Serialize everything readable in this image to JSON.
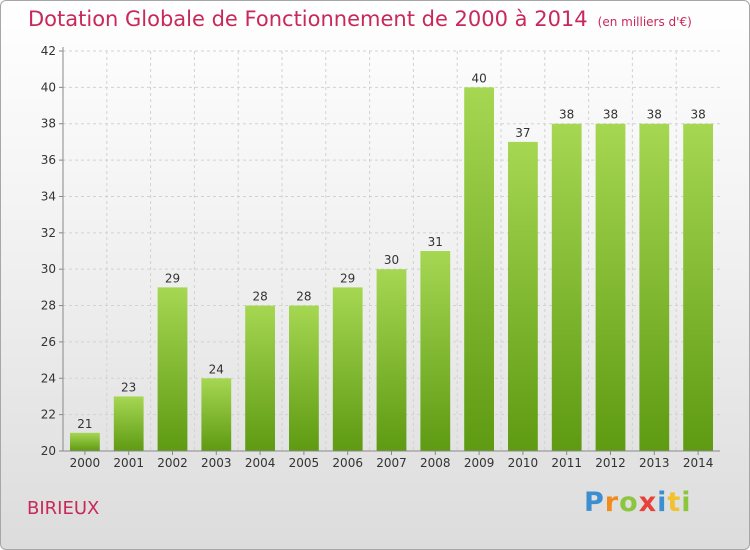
{
  "header": {
    "title": "Dotation Globale de Fonctionnement de 2000 à 2014",
    "unit": "(en milliers d'€)"
  },
  "place": "BIRIEUX",
  "logo": {
    "letters": [
      {
        "char": "P",
        "color": "#3b8fd0"
      },
      {
        "char": "r",
        "color": "#f08b1c"
      },
      {
        "char": "o",
        "color": "#8cc63f"
      },
      {
        "char": "x",
        "color": "#e8403a"
      },
      {
        "char": "i",
        "color": "#3b8fd0"
      },
      {
        "char": "t",
        "color": "#f2c12e"
      },
      {
        "char": "i",
        "color": "#8cc63f"
      }
    ]
  },
  "chart_data": {
    "type": "bar",
    "title": "Dotation Globale de Fonctionnement de 2000 à 2014",
    "subtitle": "(en milliers d'€)",
    "xlabel": "",
    "ylabel": "",
    "categories": [
      "2000",
      "2001",
      "2002",
      "2003",
      "2004",
      "2005",
      "2006",
      "2007",
      "2008",
      "2009",
      "2010",
      "2011",
      "2012",
      "2013",
      "2014"
    ],
    "values": [
      21,
      23,
      29,
      24,
      28,
      28,
      29,
      30,
      31,
      40,
      37,
      38,
      38,
      38,
      38
    ],
    "ylim": [
      20,
      42
    ],
    "yticks": [
      20,
      22,
      24,
      26,
      28,
      30,
      32,
      34,
      36,
      38,
      40,
      42
    ],
    "grid": true,
    "bar_color_top": "#a6d752",
    "bar_color_bottom": "#5e9a12"
  }
}
